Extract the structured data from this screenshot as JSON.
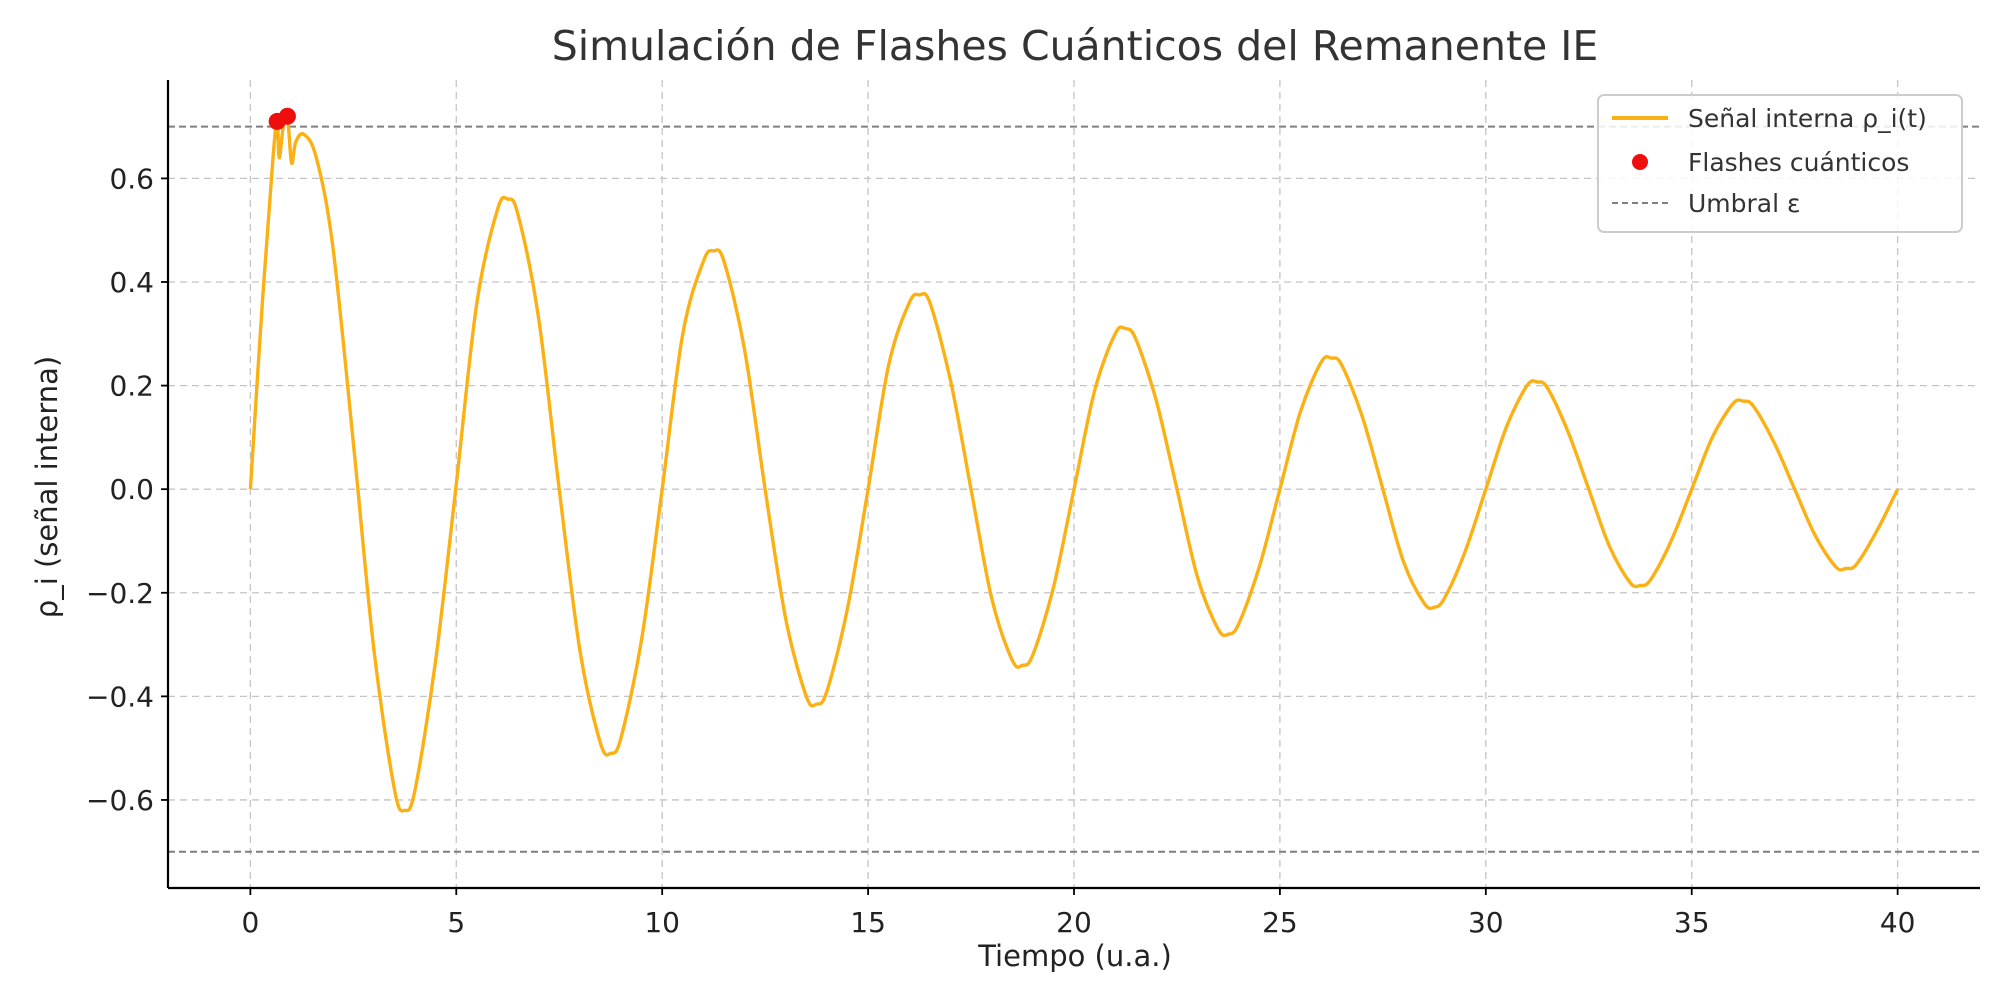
{
  "chart_data": {
    "type": "line",
    "title": "Simulación de Flashes Cuánticos del Remanente IE",
    "xlabel": "Tiempo (u.a.)",
    "ylabel": "ρ_i (señal interna)",
    "xlim": [
      -2,
      42
    ],
    "ylim": [
      -0.77,
      0.79
    ],
    "x_ticks": [
      0,
      5,
      10,
      15,
      20,
      25,
      30,
      35,
      40
    ],
    "x_tick_labels": [
      "0",
      "5",
      "10",
      "15",
      "20",
      "25",
      "30",
      "35",
      "40"
    ],
    "y_ticks": [
      -0.6,
      -0.4,
      -0.2,
      0.0,
      0.2,
      0.4,
      0.6
    ],
    "y_tick_labels": [
      "−0.6",
      "−0.4",
      "−0.2",
      "0.0",
      "0.2",
      "0.4",
      "0.6"
    ],
    "grid": true,
    "legend_position": "top-right",
    "series": [
      {
        "name": "Señal interna ρ_i(t)",
        "kind": "line",
        "color": "#fbb014",
        "x": [
          0,
          0.3,
          0.55,
          0.65,
          0.7,
          0.8,
          0.9,
          1.0,
          1.1,
          1.3,
          1.6,
          2.0,
          2.5,
          3.0,
          3.5,
          3.75,
          4.0,
          4.5,
          5.0,
          5.5,
          6.0,
          6.25,
          6.5,
          7.0,
          7.5,
          8.0,
          8.5,
          8.75,
          9.0,
          9.5,
          10.0,
          10.5,
          11.0,
          11.25,
          11.5,
          12.0,
          12.5,
          13.0,
          13.5,
          13.75,
          14.0,
          14.5,
          15.0,
          15.5,
          16.0,
          16.25,
          16.5,
          17.0,
          17.5,
          18.0,
          18.5,
          18.75,
          19.0,
          19.5,
          20.0,
          20.5,
          21.0,
          21.25,
          21.5,
          22.0,
          22.5,
          23.0,
          23.5,
          23.75,
          24.0,
          24.5,
          25.0,
          25.5,
          26.0,
          26.25,
          26.5,
          27.0,
          27.5,
          28.0,
          28.5,
          28.75,
          29.0,
          29.5,
          30.0,
          30.5,
          31.0,
          31.25,
          31.5,
          32.0,
          32.5,
          33.0,
          33.5,
          33.75,
          34.0,
          34.5,
          35.0,
          35.5,
          36.0,
          36.25,
          36.5,
          37.0,
          37.5,
          38.0,
          38.5,
          38.75,
          39.0,
          39.5,
          40.0
        ],
        "y": [
          0.0,
          0.37,
          0.64,
          0.71,
          0.64,
          0.7,
          0.72,
          0.63,
          0.67,
          0.685,
          0.64,
          0.47,
          0.09,
          -0.31,
          -0.58,
          -0.62,
          -0.58,
          -0.33,
          0.01,
          0.36,
          0.54,
          0.56,
          0.53,
          0.33,
          0.0,
          -0.31,
          -0.49,
          -0.51,
          -0.48,
          -0.29,
          0.0,
          0.3,
          0.44,
          0.46,
          0.44,
          0.27,
          0.0,
          -0.25,
          -0.4,
          -0.415,
          -0.39,
          -0.23,
          0.0,
          0.24,
          0.36,
          0.375,
          0.36,
          0.21,
          0.0,
          -0.21,
          -0.33,
          -0.34,
          -0.32,
          -0.19,
          0.0,
          0.19,
          0.3,
          0.31,
          0.29,
          0.17,
          0.0,
          -0.17,
          -0.27,
          -0.28,
          -0.26,
          -0.15,
          0.0,
          0.15,
          0.245,
          0.253,
          0.24,
          0.14,
          0.0,
          -0.14,
          -0.22,
          -0.228,
          -0.21,
          -0.12,
          0.0,
          0.12,
          0.2,
          0.207,
          0.195,
          0.11,
          0.0,
          -0.11,
          -0.18,
          -0.186,
          -0.175,
          -0.1,
          0.0,
          0.1,
          0.165,
          0.17,
          0.16,
          0.09,
          0.0,
          -0.09,
          -0.15,
          -0.153,
          -0.145,
          -0.08,
          0.0
        ]
      },
      {
        "name": "Flashes cuánticos",
        "kind": "scatter",
        "color": "#ee0e0e",
        "x": [
          0.65,
          0.9
        ],
        "y": [
          0.71,
          0.72
        ]
      }
    ],
    "threshold": {
      "name": "Umbral ε",
      "color": "#7f7f7f",
      "values": [
        0.7,
        -0.7
      ]
    }
  }
}
